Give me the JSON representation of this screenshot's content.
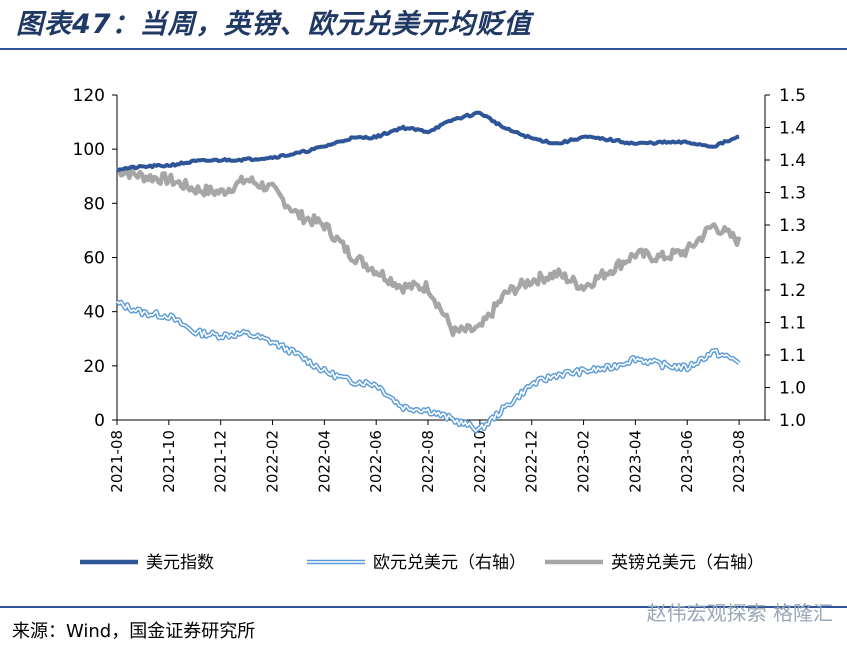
{
  "title": "图表47：当周，英镑、欧元兑美元均贬值",
  "source": "来源：Wind，国金证券研究所",
  "watermark": "赵伟宏观探索  格隆汇",
  "colors": {
    "usd_index": "#2e5597",
    "eur_usd": "#5b9bd5",
    "gbp_usd": "#a6a6a6",
    "title": "#1f3864"
  },
  "chart_data": {
    "type": "line",
    "x_ticks": [
      "2021-08",
      "2021-10",
      "2021-12",
      "2022-02",
      "2022-04",
      "2022-06",
      "2022-08",
      "2022-10",
      "2022-12",
      "2023-02",
      "2023-04",
      "2023-06",
      "2023-08"
    ],
    "y_left": {
      "lim": [
        0,
        120
      ],
      "ticks": [
        "0",
        "20",
        "40",
        "60",
        "80",
        "100",
        "120"
      ]
    },
    "y_right": {
      "lim": [
        1.0,
        1.5
      ],
      "ticks": [
        "1.0",
        "1.0",
        "1.1",
        "1.1",
        "1.2",
        "1.2",
        "1.3",
        "1.3",
        "1.4",
        "1.4",
        "1.5"
      ]
    },
    "legend": [
      "美元指数",
      "欧元兑美元（右轴）",
      "英镑兑美元（右轴）"
    ],
    "legend_position": "bottom",
    "series": [
      {
        "name": "美元指数",
        "axis": "left",
        "style": "solid",
        "x": [
          "2021-08",
          "2021-09",
          "2021-10",
          "2021-11",
          "2021-12",
          "2022-01",
          "2022-02",
          "2022-03",
          "2022-04",
          "2022-05",
          "2022-06",
          "2022-07",
          "2022-08",
          "2022-09",
          "2022-10",
          "2022-11",
          "2022-12",
          "2023-01",
          "2023-02",
          "2023-03",
          "2023-04",
          "2023-05",
          "2023-06",
          "2023-07",
          "2023-08"
        ],
        "y": [
          92.6,
          93.5,
          94.0,
          95.5,
          96.0,
          96.2,
          97.0,
          98.5,
          101.0,
          104.0,
          104.5,
          108.0,
          106.5,
          111.0,
          113.5,
          107.5,
          104.0,
          102.0,
          104.5,
          103.5,
          102.0,
          102.5,
          102.5,
          101.0,
          104.5
        ]
      },
      {
        "name": "欧元兑美元（右轴）",
        "axis": "right",
        "style": "double",
        "x": [
          "2021-08",
          "2021-09",
          "2021-10",
          "2021-11",
          "2021-12",
          "2022-01",
          "2022-02",
          "2022-03",
          "2022-04",
          "2022-05",
          "2022-06",
          "2022-07",
          "2022-08",
          "2022-09",
          "2022-10",
          "2022-11",
          "2022-12",
          "2023-01",
          "2023-02",
          "2023-03",
          "2023-04",
          "2023-05",
          "2023-06",
          "2023-07",
          "2023-08"
        ],
        "y": [
          1.18,
          1.165,
          1.16,
          1.135,
          1.13,
          1.133,
          1.12,
          1.1,
          1.075,
          1.06,
          1.055,
          1.02,
          1.015,
          1.0,
          0.985,
          1.02,
          1.055,
          1.07,
          1.075,
          1.08,
          1.095,
          1.085,
          1.08,
          1.105,
          1.09
        ]
      },
      {
        "name": "英镑兑美元（右轴）",
        "axis": "right",
        "style": "solid",
        "x": [
          "2021-08",
          "2021-09",
          "2021-10",
          "2021-11",
          "2021-12",
          "2022-01",
          "2022-02",
          "2022-03",
          "2022-04",
          "2022-05",
          "2022-06",
          "2022-07",
          "2022-08",
          "2022-09",
          "2022-10",
          "2022-11",
          "2022-12",
          "2023-01",
          "2023-02",
          "2023-03",
          "2023-04",
          "2023-05",
          "2023-06",
          "2023-07",
          "2023-08"
        ],
        "y": [
          1.385,
          1.375,
          1.37,
          1.355,
          1.35,
          1.37,
          1.355,
          1.315,
          1.3,
          1.255,
          1.23,
          1.205,
          1.205,
          1.135,
          1.14,
          1.195,
          1.215,
          1.225,
          1.205,
          1.23,
          1.255,
          1.25,
          1.26,
          1.3,
          1.275
        ]
      }
    ]
  }
}
